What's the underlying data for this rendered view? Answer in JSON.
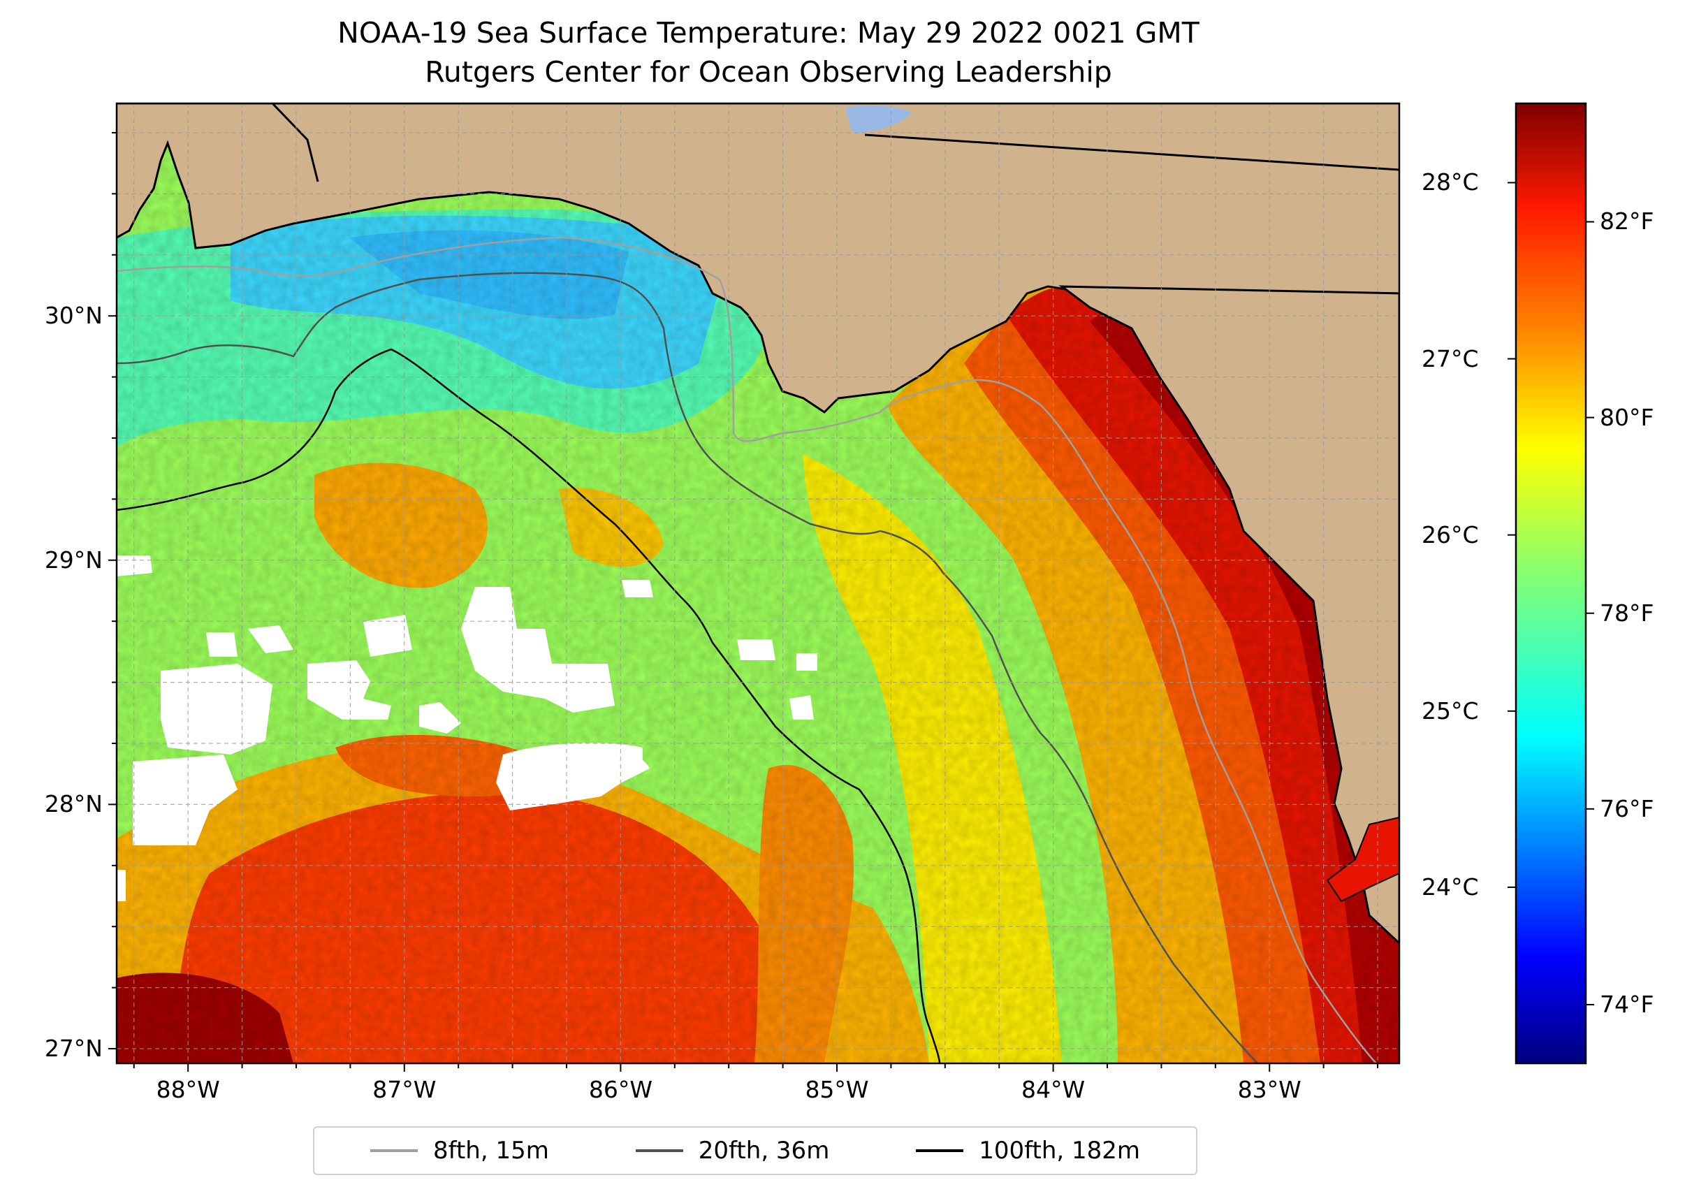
{
  "title": "NOAA-19 Sea Surface Temperature: May 29 2022 0021 GMT",
  "subtitle": "Rutgers Center for Ocean Observing Leadership",
  "map": {
    "lon_range": [
      -88.33,
      -82.4
    ],
    "lat_range": [
      26.94,
      30.87
    ],
    "land_color": "#d0b38c",
    "cloud_color": "#ffffff",
    "colormap": "jet"
  },
  "latitude_ticks": [
    {
      "value": 30,
      "label": "30°N"
    },
    {
      "value": 29,
      "label": "29°N"
    },
    {
      "value": 28,
      "label": "28°N"
    },
    {
      "value": 27,
      "label": "27°N"
    }
  ],
  "longitude_ticks": [
    {
      "value": -88,
      "label": "88°W"
    },
    {
      "value": -87,
      "label": "87°W"
    },
    {
      "value": -86,
      "label": "86°W"
    },
    {
      "value": -85,
      "label": "85°W"
    },
    {
      "value": -84,
      "label": "84°W"
    },
    {
      "value": -83,
      "label": "83°W"
    }
  ],
  "colorbar": {
    "range_c": [
      23.0,
      28.45
    ],
    "celsius_ticks": [
      {
        "value": 28,
        "label": "28°C"
      },
      {
        "value": 27,
        "label": "27°C"
      },
      {
        "value": 26,
        "label": "26°C"
      },
      {
        "value": 25,
        "label": "25°C"
      },
      {
        "value": 24,
        "label": "24°C"
      }
    ],
    "fahrenheit_ticks": [
      {
        "value": 82,
        "label": "82°F"
      },
      {
        "value": 80,
        "label": "80°F"
      },
      {
        "value": 78,
        "label": "78°F"
      },
      {
        "value": 76,
        "label": "76°F"
      },
      {
        "value": 74,
        "label": "74°F"
      }
    ]
  },
  "legend": {
    "items": [
      {
        "label": "8fth, 15m",
        "color": "#a0a0a0"
      },
      {
        "label": "20fth, 36m",
        "color": "#505050"
      },
      {
        "label": "100fth, 182m",
        "color": "#000000"
      }
    ]
  }
}
